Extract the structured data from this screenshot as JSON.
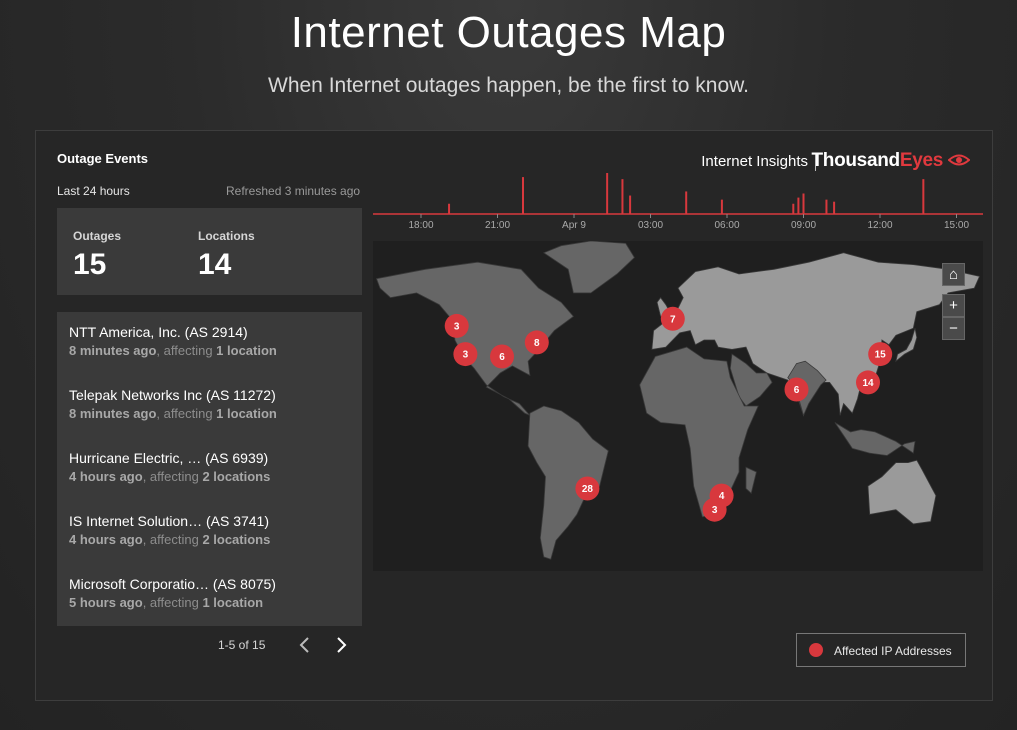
{
  "header": {
    "title": "Internet Outages Map",
    "subtitle": "When Internet outages happen, be the first to know."
  },
  "panel": {
    "title": "Outage Events",
    "range": "Last 24 hours",
    "refreshed": "Refreshed 3 minutes ago",
    "stats": {
      "outages_label": "Outages",
      "outages_value": "15",
      "locations_label": "Locations",
      "locations_value": "14"
    },
    "events": [
      {
        "name": "NTT America, Inc. (AS 2914)",
        "time": "8 minutes ago",
        "affecting": ", affecting ",
        "count": "1 location"
      },
      {
        "name": "Telepak Networks Inc (AS 11272)",
        "time": "8 minutes ago",
        "affecting": ", affecting ",
        "count": "1 location"
      },
      {
        "name": "Hurricane Electric, … (AS 6939)",
        "time": "4 hours ago",
        "affecting": ", affecting ",
        "count": "2 locations"
      },
      {
        "name": "IS Internet Solution… (AS 3741)",
        "time": "4 hours ago",
        "affecting": ", affecting ",
        "count": "2 locations"
      },
      {
        "name": "Microsoft Corporatio… (AS 8075)",
        "time": "5 hours ago",
        "affecting": ", affecting ",
        "count": "1 location"
      }
    ],
    "pagination": "1-5 of 15"
  },
  "brand": {
    "insights": "Internet Insights",
    "logo_part1": "Thousand",
    "logo_part2": "Eyes"
  },
  "timeline": {
    "tick_labels": [
      "18:00",
      "21:00",
      "Apr 9",
      "03:00",
      "06:00",
      "09:00",
      "12:00",
      "15:00"
    ],
    "spikes": [
      {
        "hour": 1.1,
        "level": 0.25
      },
      {
        "hour": 4.0,
        "level": 0.9
      },
      {
        "hour": 7.3,
        "level": 1.0
      },
      {
        "hour": 7.9,
        "level": 0.85
      },
      {
        "hour": 8.2,
        "level": 0.45
      },
      {
        "hour": 10.4,
        "level": 0.55
      },
      {
        "hour": 11.8,
        "level": 0.35
      },
      {
        "hour": 14.6,
        "level": 0.25
      },
      {
        "hour": 14.8,
        "level": 0.4
      },
      {
        "hour": 15.0,
        "level": 0.5
      },
      {
        "hour": 15.9,
        "level": 0.35
      },
      {
        "hour": 16.2,
        "level": 0.3
      },
      {
        "hour": 19.7,
        "level": 0.85
      }
    ],
    "accent_color": "#d8383d"
  },
  "map": {
    "markers": [
      {
        "label": "3",
        "lon": -122,
        "lat": 46
      },
      {
        "label": "3",
        "lon": -117,
        "lat": 34
      },
      {
        "label": "6",
        "lon": -96,
        "lat": 33
      },
      {
        "label": "8",
        "lon": -76,
        "lat": 39
      },
      {
        "label": "7",
        "lon": 2,
        "lat": 49
      },
      {
        "label": "15",
        "lon": 121,
        "lat": 34
      },
      {
        "label": "14",
        "lon": 114,
        "lat": 22
      },
      {
        "label": "6",
        "lon": 73,
        "lat": 19
      },
      {
        "label": "28",
        "lon": -47,
        "lat": -23
      },
      {
        "label": "4",
        "lon": 30,
        "lat": -26
      },
      {
        "label": "3",
        "lon": 26,
        "lat": -32
      }
    ],
    "marker_color": "#d8383d",
    "land_color": "#666666",
    "highlight_land_color": "#9a9a9a",
    "icons": {
      "home": "home-icon",
      "zoom_in": "plus-icon",
      "zoom_out": "minus-icon"
    }
  },
  "legend": {
    "label": "Affected IP Addresses"
  }
}
